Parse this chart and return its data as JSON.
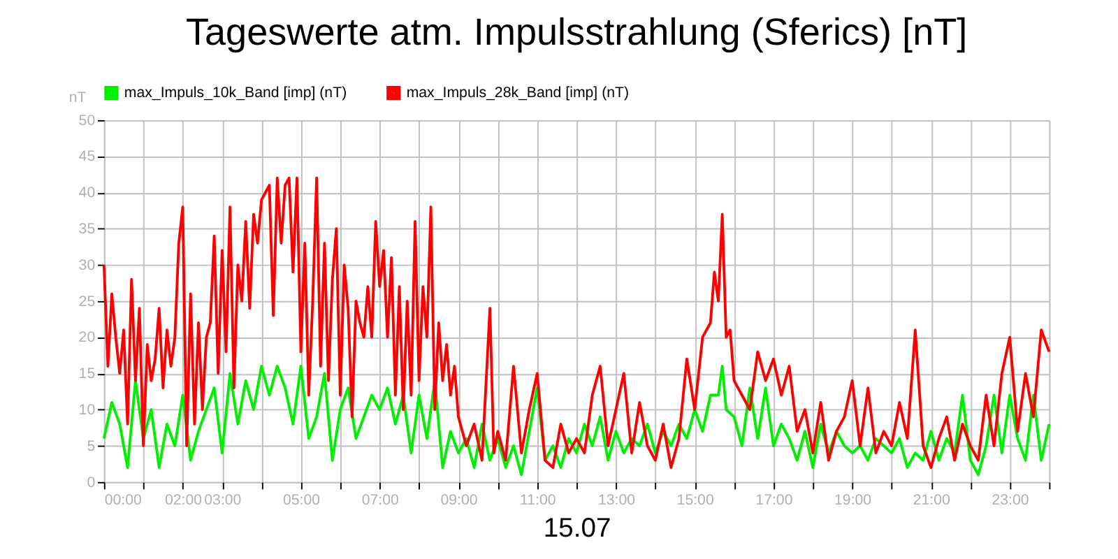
{
  "chart_data": {
    "type": "line",
    "title": "Tageswerte atm. Impulsstrahlung (Sferics) [nT]",
    "xlabel": "15.07",
    "ylabel": "nT",
    "xlim": [
      0,
      24
    ],
    "ylim": [
      0,
      50
    ],
    "xticks": [
      {
        "value": 0,
        "label": "00:00"
      },
      {
        "value": 1,
        "label": null
      },
      {
        "value": 2,
        "label": "02:00"
      },
      {
        "value": 3,
        "label": "03:00"
      },
      {
        "value": 4,
        "label": null
      },
      {
        "value": 5,
        "label": "05:00"
      },
      {
        "value": 6,
        "label": null
      },
      {
        "value": 7,
        "label": "07:00"
      },
      {
        "value": 8,
        "label": null
      },
      {
        "value": 9,
        "label": "09:00"
      },
      {
        "value": 10,
        "label": null
      },
      {
        "value": 11,
        "label": "11:00"
      },
      {
        "value": 12,
        "label": null
      },
      {
        "value": 13,
        "label": "13:00"
      },
      {
        "value": 14,
        "label": null
      },
      {
        "value": 15,
        "label": "15:00"
      },
      {
        "value": 16,
        "label": null
      },
      {
        "value": 17,
        "label": "17:00"
      },
      {
        "value": 18,
        "label": null
      },
      {
        "value": 19,
        "label": "19:00"
      },
      {
        "value": 20,
        "label": null
      },
      {
        "value": 21,
        "label": "21:00"
      },
      {
        "value": 22,
        "label": null
      },
      {
        "value": 23,
        "label": "23:00"
      },
      {
        "value": 24,
        "label": null
      }
    ],
    "yticks": [
      0,
      5,
      10,
      15,
      20,
      25,
      30,
      35,
      40,
      45,
      50
    ],
    "grid": true,
    "legend": "top left",
    "marker": "none",
    "line_style": "solid",
    "series": [
      {
        "name": "max_Impuls_10k_Band [imp] (nT)",
        "color": "#00ee00",
        "x": [
          0.0,
          0.2,
          0.4,
          0.6,
          0.8,
          1.0,
          1.2,
          1.4,
          1.6,
          1.8,
          2.0,
          2.2,
          2.4,
          2.6,
          2.8,
          3.0,
          3.2,
          3.4,
          3.6,
          3.8,
          4.0,
          4.2,
          4.4,
          4.6,
          4.8,
          5.0,
          5.2,
          5.4,
          5.6,
          5.8,
          6.0,
          6.2,
          6.4,
          6.6,
          6.8,
          7.0,
          7.2,
          7.4,
          7.6,
          7.8,
          8.0,
          8.2,
          8.4,
          8.6,
          8.8,
          9.0,
          9.2,
          9.4,
          9.6,
          9.8,
          10.0,
          10.2,
          10.4,
          10.6,
          10.8,
          11.0,
          11.2,
          11.4,
          11.6,
          11.8,
          12.0,
          12.2,
          12.4,
          12.6,
          12.8,
          13.0,
          13.2,
          13.4,
          13.6,
          13.8,
          14.0,
          14.2,
          14.4,
          14.6,
          14.8,
          15.0,
          15.2,
          15.4,
          15.6,
          15.7,
          15.8,
          16.0,
          16.2,
          16.4,
          16.6,
          16.8,
          17.0,
          17.2,
          17.4,
          17.6,
          17.8,
          18.0,
          18.2,
          18.4,
          18.6,
          18.8,
          19.0,
          19.2,
          19.4,
          19.6,
          19.8,
          20.0,
          20.2,
          20.4,
          20.6,
          20.8,
          21.0,
          21.2,
          21.4,
          21.6,
          21.8,
          22.0,
          22.2,
          22.4,
          22.6,
          22.8,
          23.0,
          23.2,
          23.4,
          23.6,
          23.8,
          24.0
        ],
        "values": [
          6,
          11,
          8,
          2,
          14,
          6,
          10,
          2,
          8,
          5,
          12,
          3,
          7,
          10,
          13,
          4,
          15,
          8,
          14,
          10,
          16,
          12,
          16,
          13,
          8,
          16,
          6,
          9,
          15,
          3,
          10,
          13,
          6,
          9,
          12,
          10,
          13,
          8,
          12,
          4,
          12,
          6,
          14,
          2,
          7,
          4,
          6,
          2,
          8,
          3,
          6,
          2,
          5,
          1,
          7,
          13,
          3,
          5,
          2,
          6,
          4,
          8,
          5,
          9,
          3,
          7,
          4,
          6,
          5,
          8,
          4,
          7,
          5,
          8,
          6,
          10,
          7,
          12,
          12,
          16,
          10,
          9,
          5,
          13,
          6,
          13,
          5,
          8,
          6,
          3,
          7,
          2,
          8,
          4,
          7,
          5,
          4,
          5,
          3,
          6,
          5,
          4,
          6,
          2,
          4,
          3,
          7,
          3,
          6,
          4,
          12,
          3,
          1,
          5,
          12,
          4,
          12,
          6,
          3,
          12,
          3,
          8
        ]
      },
      {
        "name": "max_Impuls_28k_Band [imp] (nT)",
        "color": "#ff0000",
        "x": [
          0.0,
          0.1,
          0.2,
          0.3,
          0.4,
          0.5,
          0.6,
          0.7,
          0.8,
          0.9,
          1.0,
          1.1,
          1.2,
          1.3,
          1.4,
          1.5,
          1.6,
          1.7,
          1.8,
          1.9,
          2.0,
          2.1,
          2.2,
          2.3,
          2.4,
          2.5,
          2.6,
          2.7,
          2.8,
          2.9,
          3.0,
          3.1,
          3.2,
          3.3,
          3.4,
          3.5,
          3.6,
          3.7,
          3.8,
          3.9,
          4.0,
          4.1,
          4.2,
          4.3,
          4.4,
          4.5,
          4.6,
          4.7,
          4.8,
          4.9,
          5.0,
          5.1,
          5.2,
          5.3,
          5.4,
          5.5,
          5.6,
          5.7,
          5.8,
          5.9,
          6.0,
          6.1,
          6.2,
          6.3,
          6.4,
          6.5,
          6.6,
          6.7,
          6.8,
          6.9,
          7.0,
          7.1,
          7.2,
          7.3,
          7.4,
          7.5,
          7.6,
          7.7,
          7.8,
          7.9,
          8.0,
          8.1,
          8.2,
          8.3,
          8.4,
          8.5,
          8.6,
          8.7,
          8.8,
          8.9,
          9.0,
          9.2,
          9.4,
          9.6,
          9.8,
          9.9,
          10.0,
          10.2,
          10.4,
          10.6,
          10.8,
          11.0,
          11.2,
          11.4,
          11.6,
          11.8,
          12.0,
          12.2,
          12.4,
          12.6,
          12.8,
          13.0,
          13.2,
          13.4,
          13.6,
          13.8,
          14.0,
          14.2,
          14.4,
          14.6,
          14.8,
          15.0,
          15.2,
          15.4,
          15.5,
          15.6,
          15.7,
          15.8,
          15.9,
          16.0,
          16.2,
          16.4,
          16.6,
          16.8,
          17.0,
          17.2,
          17.4,
          17.6,
          17.8,
          18.0,
          18.2,
          18.4,
          18.6,
          18.8,
          19.0,
          19.2,
          19.4,
          19.6,
          19.8,
          20.0,
          20.2,
          20.4,
          20.6,
          20.8,
          21.0,
          21.2,
          21.4,
          21.6,
          21.8,
          22.0,
          22.2,
          22.4,
          22.6,
          22.8,
          23.0,
          23.2,
          23.4,
          23.6,
          23.8,
          24.0
        ],
        "values": [
          30,
          16,
          26,
          20,
          15,
          21,
          8,
          28,
          14,
          24,
          5,
          19,
          14,
          17,
          24,
          13,
          21,
          16,
          20,
          33,
          38,
          5,
          26,
          8,
          22,
          10,
          20,
          22,
          34,
          15,
          32,
          18,
          38,
          13,
          30,
          25,
          36,
          24,
          37,
          33,
          39,
          40,
          41,
          23,
          42,
          33,
          41,
          42,
          29,
          42,
          18,
          33,
          12,
          25,
          42,
          16,
          33,
          14,
          28,
          35,
          12,
          30,
          24,
          9,
          25,
          22,
          20,
          27,
          20,
          36,
          27,
          32,
          20,
          31,
          12,
          27,
          10,
          25,
          12,
          36,
          14,
          27,
          20,
          38,
          10,
          22,
          14,
          19,
          12,
          16,
          9,
          5,
          8,
          3,
          24,
          4,
          7,
          3,
          16,
          4,
          10,
          15,
          3,
          2,
          8,
          4,
          6,
          4,
          12,
          16,
          5,
          10,
          15,
          4,
          11,
          5,
          3,
          8,
          2,
          6,
          17,
          10,
          20,
          22,
          29,
          25,
          37,
          20,
          21,
          14,
          12,
          10,
          18,
          14,
          17,
          12,
          16,
          7,
          10,
          4,
          11,
          3,
          7,
          9,
          14,
          5,
          13,
          4,
          7,
          5,
          11,
          6,
          21,
          5,
          2,
          6,
          9,
          3,
          8,
          5,
          3,
          12,
          5,
          15,
          20,
          7,
          15,
          9,
          21,
          18
        ]
      }
    ]
  }
}
